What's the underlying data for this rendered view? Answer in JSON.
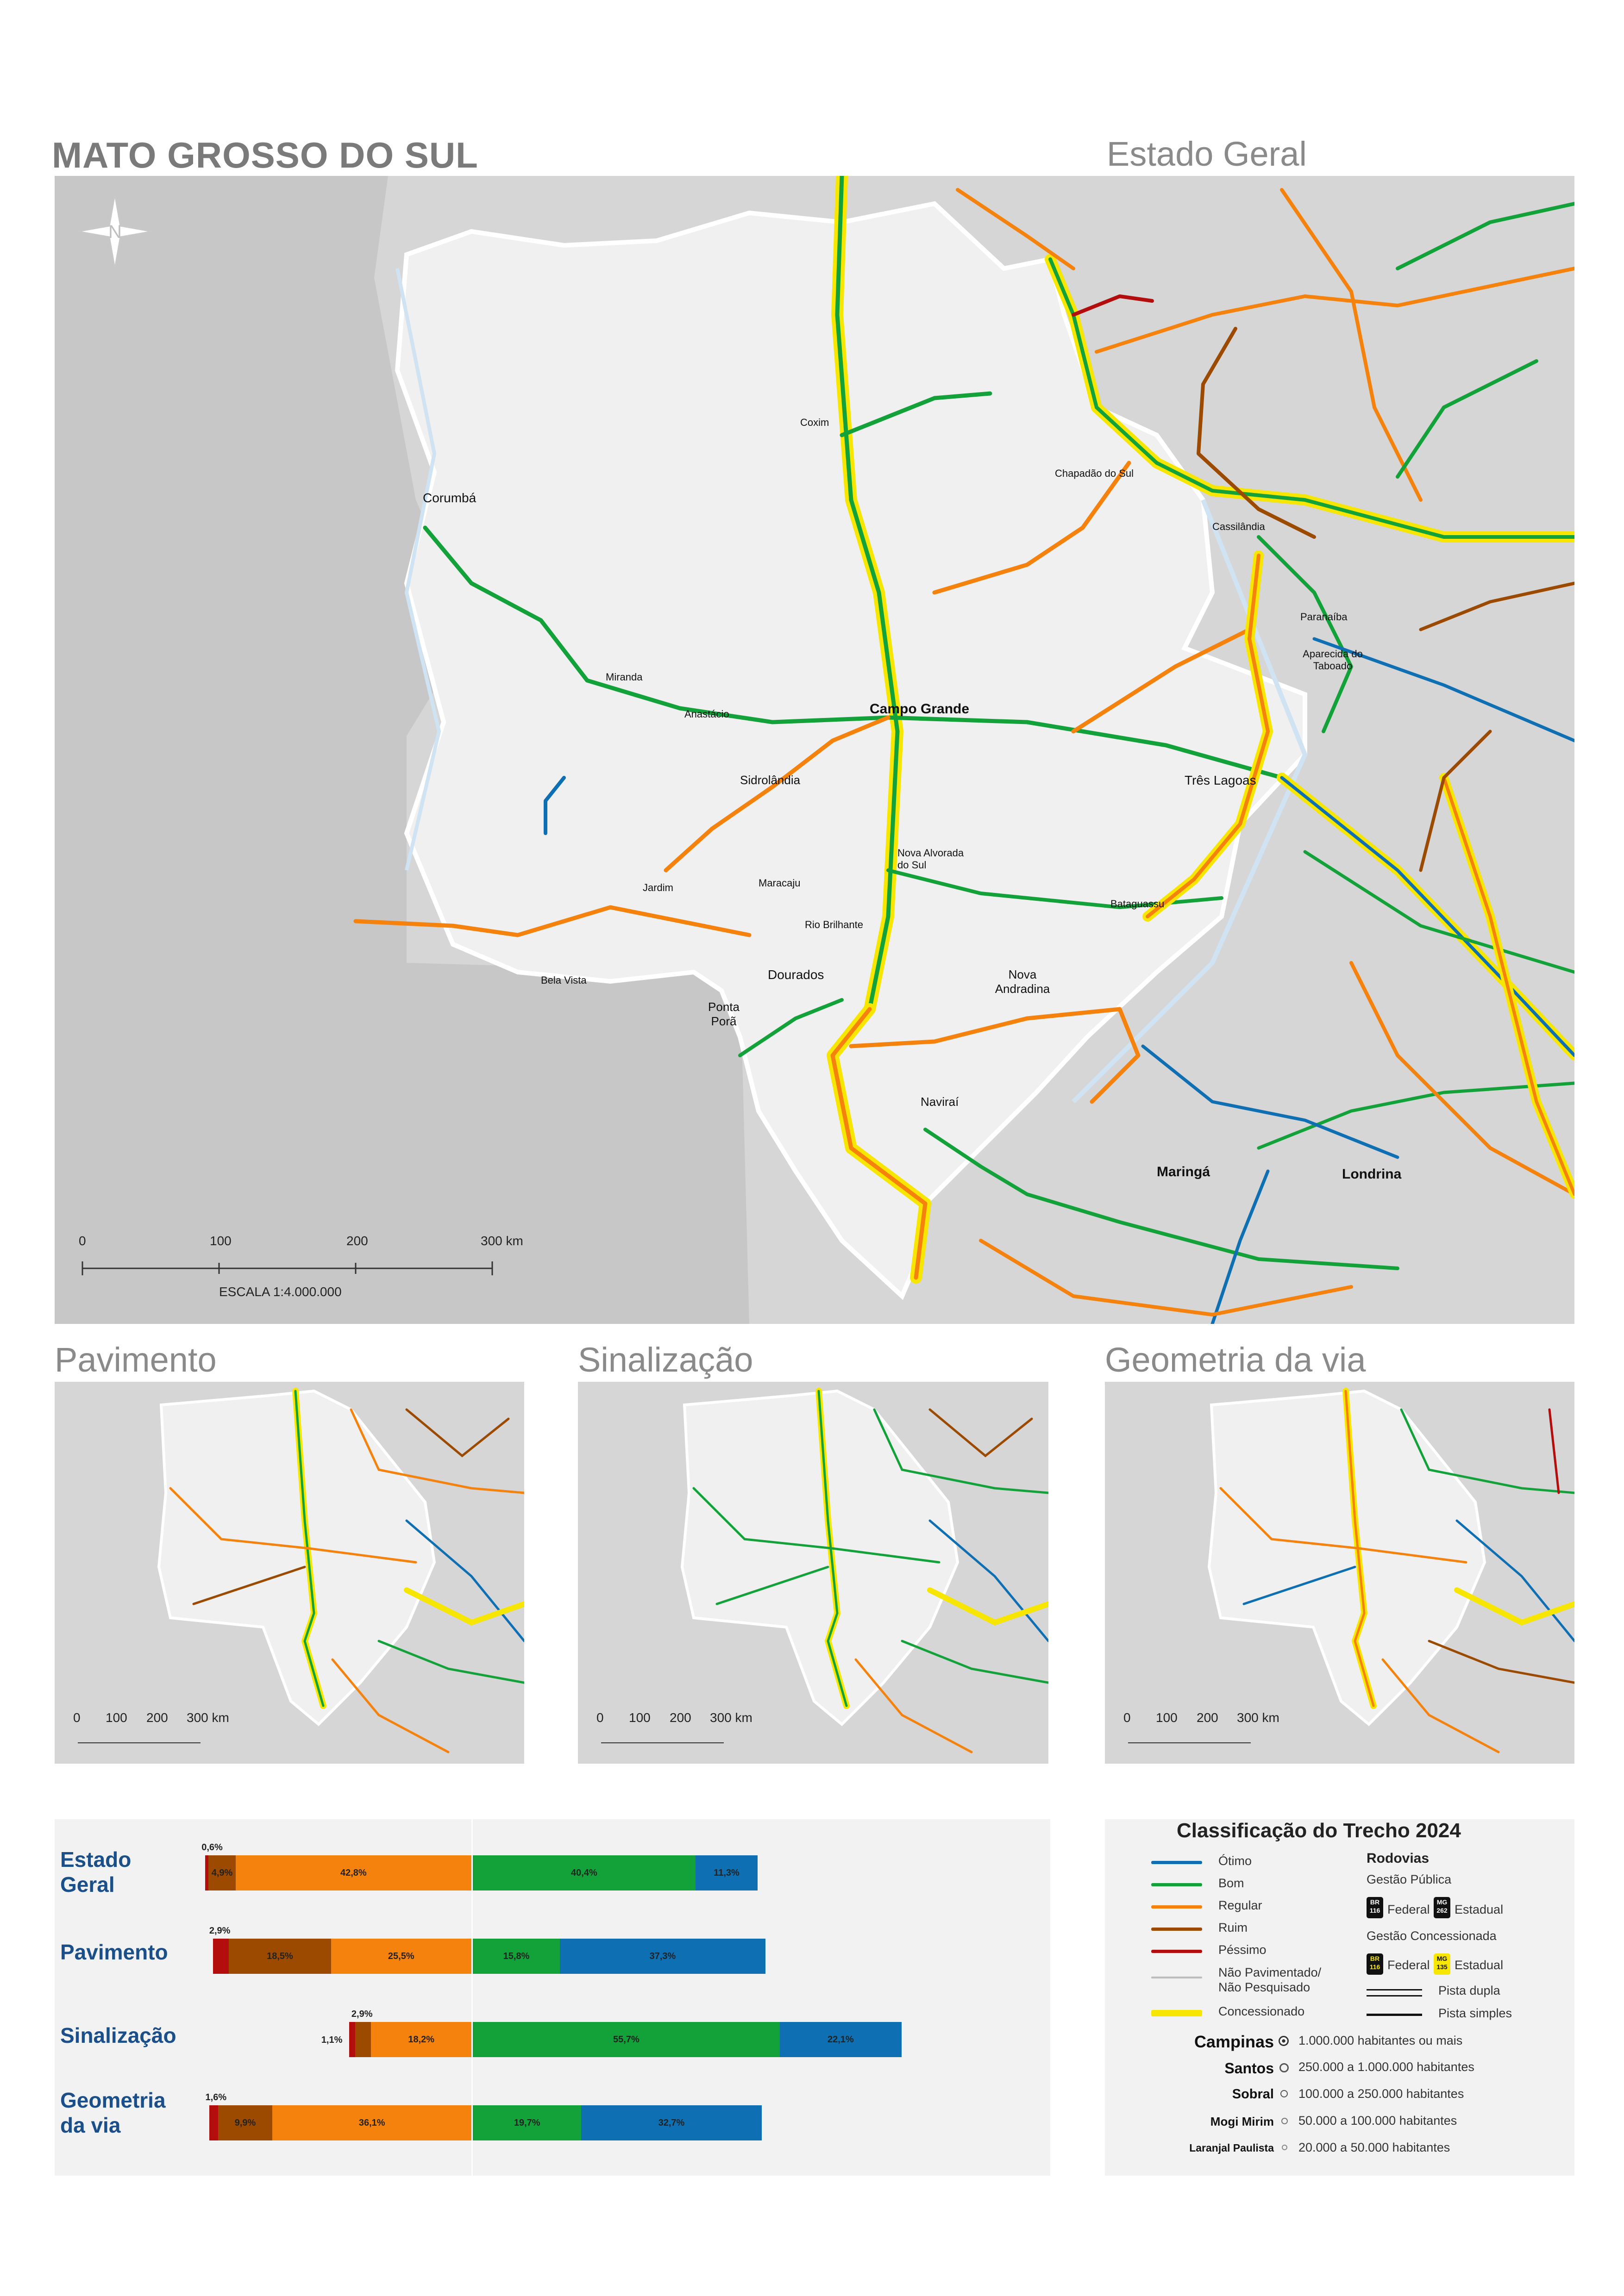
{
  "title": "MATO GROSSO DO SUL",
  "main_map": {
    "heading": "Estado Geral",
    "scale_ticks": [
      "0",
      "100",
      "200",
      "300 km"
    ],
    "scale_caption": "ESCALA 1:4.000.000",
    "cities": [
      "Corumbá",
      "Coxim",
      "Chapadão do Sul",
      "Cassilândia",
      "Paranaíba",
      "Aparecida do Taboado",
      "Miranda",
      "Anastácio",
      "Campo Grande",
      "Sidrolândia",
      "Três Lagoas",
      "Nova Alvorada do Sul",
      "Jardim",
      "Maracaju",
      "Bataguassu",
      "Rio Brilhante",
      "Bela Vista",
      "Dourados",
      "Nova Andradina",
      "Ponta Porã",
      "Naviraí",
      "Maringá",
      "Londrina"
    ]
  },
  "mini_maps": [
    {
      "heading": "Pavimento",
      "scale_ticks": [
        "0",
        "100",
        "200",
        "300 km"
      ]
    },
    {
      "heading": "Sinalização",
      "scale_ticks": [
        "0",
        "100",
        "200",
        "300 km"
      ]
    },
    {
      "heading": "Geometria da via",
      "scale_ticks": [
        "0",
        "100",
        "200",
        "300 km"
      ]
    }
  ],
  "chart_data": {
    "type": "bar",
    "stacked": true,
    "categories": [
      "Estado Geral",
      "Pavimento",
      "Sinalização",
      "Geometria da via"
    ],
    "series": [
      {
        "name": "Péssimo",
        "color": "#b30d0d",
        "values": [
          0.6,
          2.9,
          1.1,
          1.6
        ]
      },
      {
        "name": "Ruim",
        "color": "#9b4a00",
        "values": [
          4.9,
          18.5,
          2.9,
          9.9
        ]
      },
      {
        "name": "Regular",
        "color": "#f5820d",
        "values": [
          42.8,
          25.5,
          18.2,
          36.1
        ]
      },
      {
        "name": "Bom",
        "color": "#13a23a",
        "values": [
          40.4,
          15.8,
          55.7,
          19.7
        ]
      },
      {
        "name": "Ótimo",
        "color": "#0e6fb3",
        "values": [
          11.3,
          37.3,
          22.1,
          32.7
        ]
      }
    ],
    "labels": [
      [
        "0,6%",
        "4,9%",
        "42,8%",
        "40,4%",
        "11,3%"
      ],
      [
        "2,9%",
        "18,5%",
        "25,5%",
        "15,8%",
        "37,3%"
      ],
      [
        "1,1%",
        "2,9%",
        "18,2%",
        "55,7%",
        "22,1%"
      ],
      [
        "1,6%",
        "9,9%",
        "36,1%",
        "19,7%",
        "32,7%"
      ]
    ]
  },
  "legend": {
    "title": "Classificação do Trecho 2024",
    "classes": [
      {
        "label": "Ótimo",
        "color": "#0e6fb3"
      },
      {
        "label": "Bom",
        "color": "#13a23a"
      },
      {
        "label": "Regular",
        "color": "#f5820d"
      },
      {
        "label": "Ruim",
        "color": "#9b4a00"
      },
      {
        "label": "Péssimo",
        "color": "#b30d0d"
      },
      {
        "label": "Não Pavimentado/ Não Pesquisado",
        "color": "#bdbdbd"
      },
      {
        "label": "Concessionado",
        "color": "#f7e600"
      }
    ],
    "roads_title": "Rodovias",
    "public_mgmt": "Gestão Pública",
    "concession_mgmt": "Gestão Concessionada",
    "federal": "Federal",
    "estadual": "Estadual",
    "shield_br": "BR",
    "shield_br_num": "116",
    "shield_mg": "MG",
    "shield_mg_num_public": "262",
    "shield_mg_num_conc": "135",
    "pista_dupla": "Pista dupla",
    "pista_simples": "Pista simples",
    "population": [
      {
        "city": "Campinas",
        "range": "1.000.000 habitantes ou mais"
      },
      {
        "city": "Santos",
        "range": "250.000 a 1.000.000 habitantes"
      },
      {
        "city": "Sobral",
        "range": "100.000 a 250.000 habitantes"
      },
      {
        "city": "Mogi Mirim",
        "range": "50.000 a 100.000 habitantes"
      },
      {
        "city": "Laranjal Paulista",
        "range": "20.000 a 50.000 habitantes"
      }
    ]
  },
  "colors": {
    "otimo": "#0e6fb3",
    "bom": "#13a23a",
    "regular": "#f5820d",
    "ruim": "#9b4a00",
    "pessimo": "#b30d0d",
    "concessionado": "#f7e600",
    "land_out": "#d3d3d3",
    "land_in": "#efefef"
  }
}
